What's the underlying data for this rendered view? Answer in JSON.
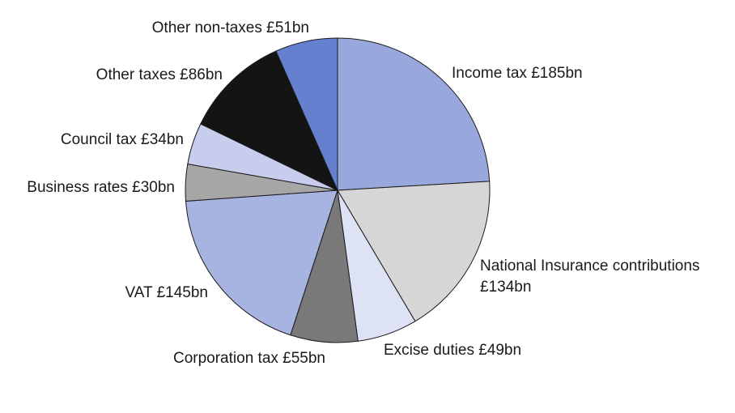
{
  "chart_data": {
    "type": "pie",
    "unit": "£bn",
    "slices": [
      {
        "label": "Income tax £185bn",
        "value": 185,
        "color": "#98a8dc"
      },
      {
        "label": "National Insurance contributions",
        "label2": "£134bn",
        "value": 134,
        "color": "#d6d6d6"
      },
      {
        "label": "Excise duties £49bn",
        "value": 49,
        "color": "#dde2f4"
      },
      {
        "label": "Corporation tax £55bn",
        "value": 55,
        "color": "#797979"
      },
      {
        "label": "VAT £145bn",
        "value": 145,
        "color": "#a7b3e0"
      },
      {
        "label": "Business rates £30bn",
        "value": 30,
        "color": "#a6a6a6"
      },
      {
        "label": "Council tax £34bn",
        "value": 34,
        "color": "#c9cded"
      },
      {
        "label": "Other taxes £86bn",
        "value": 86,
        "color": "#141414"
      },
      {
        "label": "Other non-taxes £51bn",
        "value": 51,
        "color": "#6680d0"
      }
    ]
  }
}
